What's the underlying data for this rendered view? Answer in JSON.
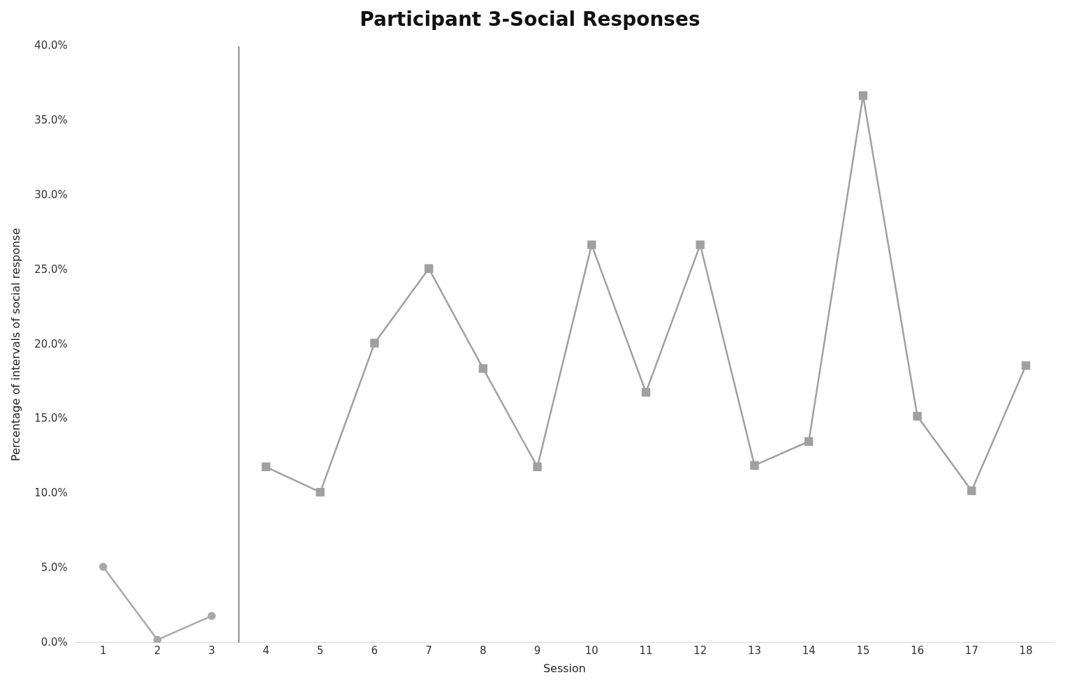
{
  "chart_data": {
    "type": "line",
    "title": "Participant 3-Social Responses",
    "xlabel": "Session",
    "ylabel": "Percentage of intervals of social response",
    "xlim": [
      0.5,
      18.5
    ],
    "xticks": [
      1,
      2,
      3,
      4,
      5,
      6,
      7,
      8,
      9,
      10,
      11,
      12,
      13,
      14,
      15,
      16,
      17,
      18
    ],
    "ylim": [
      0,
      40
    ],
    "yticks": [
      {
        "value": 0,
        "label": "0.0%"
      },
      {
        "value": 5,
        "label": "5.0%"
      },
      {
        "value": 10,
        "label": "10.0%"
      },
      {
        "value": 15,
        "label": "15.0%"
      },
      {
        "value": 20,
        "label": "20.0%"
      },
      {
        "value": 25,
        "label": "25.0%"
      },
      {
        "value": 30,
        "label": "30.0%"
      },
      {
        "value": 35,
        "label": "35.0%"
      },
      {
        "value": 40,
        "label": "40.0%"
      }
    ],
    "grid": false,
    "legend": false,
    "line_style": "solid",
    "ref_lines": [
      {
        "axis": "x",
        "value": 3.5,
        "color": "#909090"
      }
    ],
    "series": [
      {
        "color": "#a8a8a8",
        "marker": "circle",
        "x": [
          1,
          2,
          3
        ],
        "values": [
          5.1,
          0.2,
          1.8
        ]
      },
      {
        "color": "#a0a0a0",
        "marker": "square",
        "x": [
          4,
          5,
          6,
          7,
          8,
          9,
          10,
          11,
          12,
          13,
          14,
          15,
          16,
          17,
          18
        ],
        "values": [
          11.8,
          10.1,
          20.1,
          25.1,
          18.4,
          11.8,
          26.7,
          16.8,
          26.7,
          11.9,
          13.5,
          36.7,
          15.2,
          10.2,
          18.6
        ]
      }
    ]
  }
}
